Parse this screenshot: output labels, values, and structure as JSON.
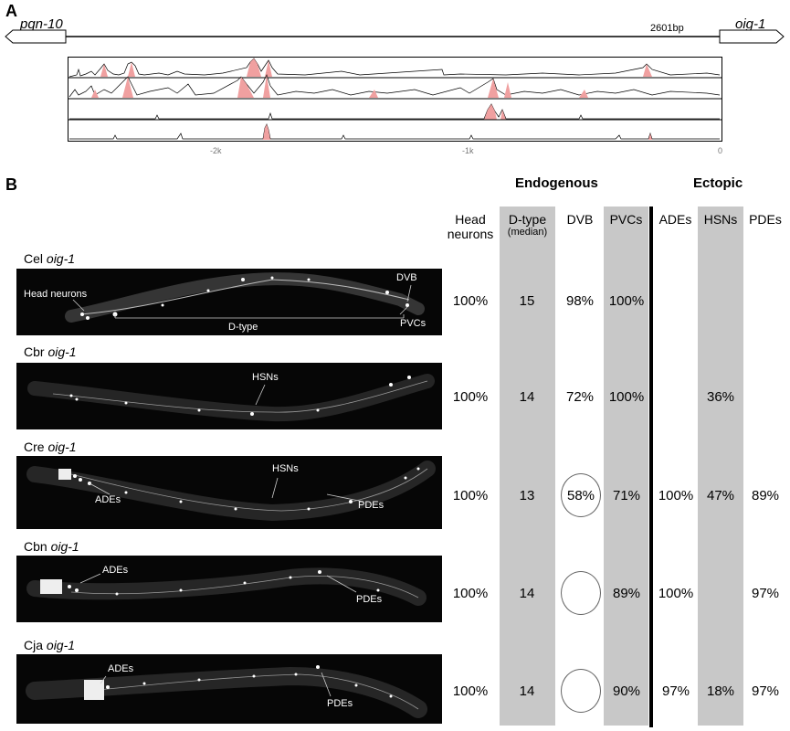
{
  "panelA": {
    "label": "A",
    "left_gene": "pqn-10",
    "right_gene": "oig-1",
    "length_label": "2601bp",
    "ticks": [
      "-2k",
      "-1k",
      "0"
    ]
  },
  "panelB": {
    "label": "B",
    "group_endogenous": "Endogenous",
    "group_ectopic": "Ectopic",
    "columns": {
      "head": "Head neurons",
      "dtype": "D-type",
      "dtype_sub": "(median)",
      "dvb": "DVB",
      "pvcs": "PVCs",
      "ades": "ADEs",
      "hsns": "HSNs",
      "pdes": "PDEs"
    },
    "rows": [
      {
        "species": "Cel",
        "gene": "oig-1",
        "head": "100%",
        "dtype": "15",
        "dvb": "98%",
        "pvcs": "100%",
        "ades": "",
        "hsns": "",
        "pdes": "",
        "labels": [
          "Head neurons",
          "D-type",
          "DVB",
          "PVCs"
        ]
      },
      {
        "species": "Cbr",
        "gene": "oig-1",
        "head": "100%",
        "dtype": "14",
        "dvb": "72%",
        "pvcs": "100%",
        "ades": "",
        "hsns": "36%",
        "pdes": "",
        "labels": [
          "HSNs"
        ]
      },
      {
        "species": "Cre",
        "gene": "oig-1",
        "head": "100%",
        "dtype": "13",
        "dvb": "58%",
        "pvcs": "71%",
        "ades": "100%",
        "hsns": "47%",
        "pdes": "89%",
        "labels": [
          "ADEs",
          "HSNs",
          "PDEs"
        ]
      },
      {
        "species": "Cbn",
        "gene": "oig-1",
        "head": "100%",
        "dtype": "14",
        "dvb": "",
        "pvcs": "89%",
        "ades": "100%",
        "hsns": "",
        "pdes": "97%",
        "labels": [
          "ADEs",
          "PDEs"
        ]
      },
      {
        "species": "Cja",
        "gene": "oig-1",
        "head": "100%",
        "dtype": "14",
        "dvb": "",
        "pvcs": "90%",
        "ades": "97%",
        "hsns": "18%",
        "pdes": "97%",
        "labels": [
          "ADEs",
          "PDEs"
        ]
      }
    ]
  },
  "colors": {
    "conservation_fill": "#f0a0a0",
    "grey_column": "#c8c8c8",
    "worm_bg": "#060606"
  }
}
